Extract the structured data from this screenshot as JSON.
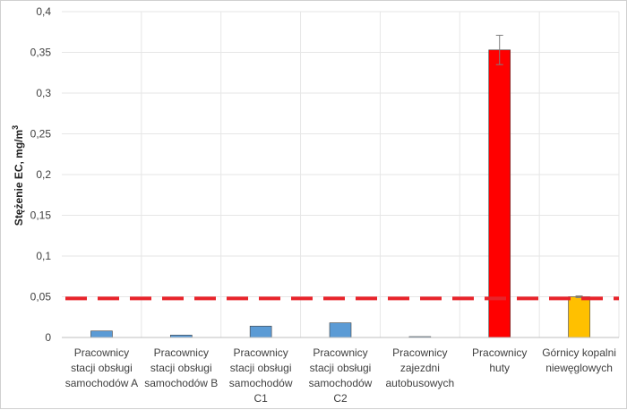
{
  "chart_data": {
    "type": "bar",
    "title": "",
    "xlabel": "",
    "ylabel": "Stężenie EC, mg/m",
    "ylabel_superscript": "3",
    "ylim": [
      0,
      0.4
    ],
    "yticks": [
      0,
      0.05,
      0.1,
      0.15,
      0.2,
      0.25,
      0.3,
      0.35,
      0.4
    ],
    "ytick_labels": [
      "0",
      "0,05",
      "0,1",
      "0,15",
      "0,2",
      "0,25",
      "0,3",
      "0,35",
      "0,4"
    ],
    "grid": true,
    "categories": [
      [
        "Pracownicy",
        "stacji obsługi",
        "samochodów A"
      ],
      [
        "Pracownicy",
        "stacji obsługi",
        "samochodów B"
      ],
      [
        "Pracownicy",
        "stacji obsługi",
        "samochodów",
        "C1"
      ],
      [
        "Pracownicy",
        "stacji obsługi",
        "samochodów",
        "C2"
      ],
      [
        "Pracownicy",
        "zajezdni",
        "autobusowych"
      ],
      [
        "Pracownicy",
        "huty"
      ],
      [
        "Górnicy kopalni",
        "niewęglowych"
      ]
    ],
    "values": [
      0.008,
      0.003,
      0.014,
      0.018,
      0.001,
      0.353,
      0.05
    ],
    "error": [
      null,
      null,
      null,
      null,
      null,
      0.018,
      0.001
    ],
    "bar_colors": [
      "#5b9bd5",
      "#5b9bd5",
      "#5b9bd5",
      "#5b9bd5",
      "#5b9bd5",
      "#ff0000",
      "#ffc000"
    ],
    "reference_line": {
      "value": 0.048,
      "color": "#e8232a",
      "style": "dashed"
    }
  }
}
